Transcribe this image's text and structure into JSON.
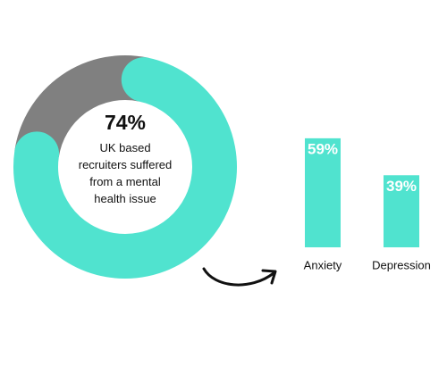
{
  "chart_data": [
    {
      "type": "donut",
      "values": [
        74,
        26
      ],
      "value_labels": [
        "74%",
        null
      ],
      "colors": [
        "#50e3cf",
        "#808080"
      ],
      "label": "UK based recruiters suffered from a mental health issue"
    },
    {
      "type": "bar",
      "categories": [
        "Anxiety",
        "Depression"
      ],
      "values": [
        59,
        39
      ],
      "value_labels": [
        "59%",
        "39%"
      ],
      "color": "#50e3cf"
    }
  ]
}
